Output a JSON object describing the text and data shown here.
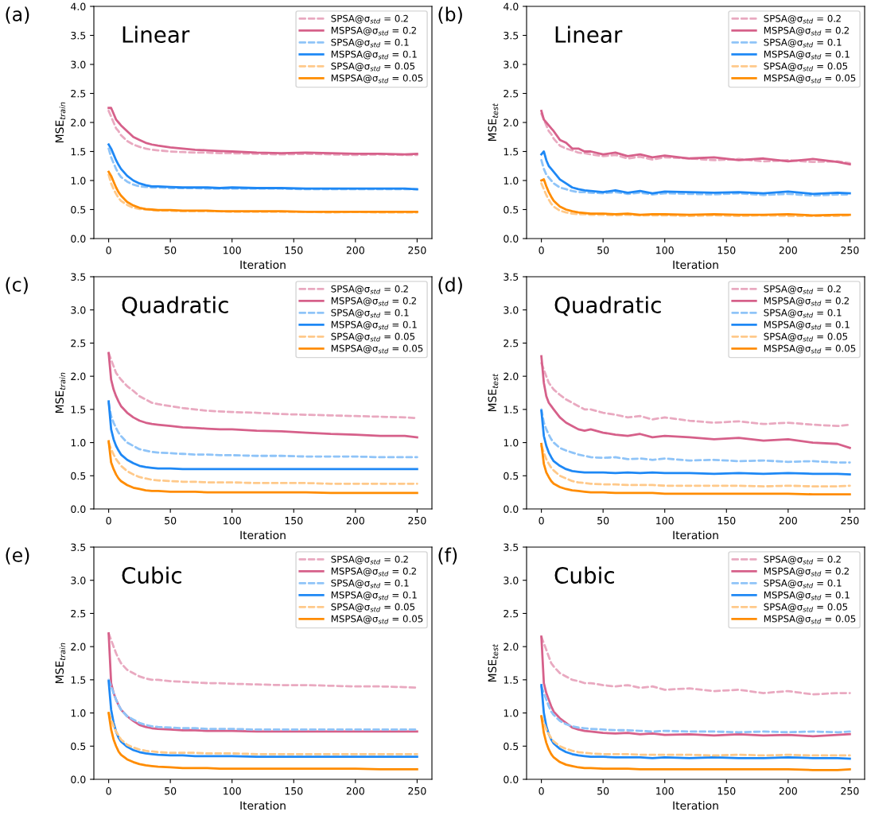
{
  "chart_data": [
    {
      "type": "line",
      "title": "(a)",
      "annotations": [
        "Linear"
      ],
      "xlabel": "Iteration",
      "ylabel": "MSE$_{train}$",
      "xlim": [
        -12,
        262
      ],
      "xticks": [
        0,
        50,
        100,
        150,
        200,
        250
      ],
      "ylim": [
        0,
        4
      ],
      "yticks": [
        {
          "value": 0,
          "label": "0.0"
        },
        0.5,
        {
          "value": 1,
          "label": "1.0"
        },
        1.5,
        {
          "value": 2,
          "label": "2.0"
        },
        2.5,
        {
          "value": 3,
          "label": "3.0"
        },
        3.5,
        {
          "value": 4,
          "label": "4.0"
        }
      ],
      "legend": "top right",
      "grid": false,
      "x": [
        0,
        2,
        4,
        6,
        8,
        10,
        15,
        20,
        25,
        30,
        35,
        40,
        50,
        60,
        70,
        80,
        90,
        100,
        120,
        140,
        160,
        180,
        200,
        220,
        240,
        250
      ],
      "series": [
        {
          "name": "SPSA@σ$_{std}$ = 0.2",
          "color": "#e9a9c0",
          "line_style": "dashed",
          "values": [
            2.2,
            2.1,
            2.0,
            1.9,
            1.85,
            1.78,
            1.68,
            1.62,
            1.58,
            1.55,
            1.53,
            1.52,
            1.5,
            1.49,
            1.48,
            1.48,
            1.47,
            1.47,
            1.46,
            1.45,
            1.46,
            1.45,
            1.44,
            1.45,
            1.44,
            1.44
          ]
        },
        {
          "name": "MSPSA@σ$_{std}$ = 0.2",
          "color": "#d6608a",
          "line_style": "solid",
          "values": [
            2.25,
            2.25,
            2.15,
            2.05,
            2.0,
            1.95,
            1.85,
            1.75,
            1.7,
            1.65,
            1.62,
            1.6,
            1.57,
            1.55,
            1.53,
            1.52,
            1.51,
            1.5,
            1.48,
            1.47,
            1.48,
            1.47,
            1.46,
            1.46,
            1.45,
            1.46
          ]
        },
        {
          "name": "SPSA@σ$_{std}$ = 0.1",
          "color": "#8fc4f8",
          "line_style": "dashed",
          "values": [
            1.55,
            1.4,
            1.3,
            1.2,
            1.12,
            1.06,
            0.98,
            0.93,
            0.9,
            0.89,
            0.88,
            0.88,
            0.87,
            0.87,
            0.87,
            0.86,
            0.86,
            0.86,
            0.86,
            0.86,
            0.85,
            0.85,
            0.85,
            0.85,
            0.85,
            0.85
          ]
        },
        {
          "name": "MSPSA@σ$_{std}$ = 0.1",
          "color": "#1e88f5",
          "line_style": "solid",
          "values": [
            1.62,
            1.55,
            1.45,
            1.35,
            1.27,
            1.2,
            1.08,
            1.0,
            0.95,
            0.92,
            0.9,
            0.9,
            0.89,
            0.88,
            0.88,
            0.88,
            0.87,
            0.88,
            0.87,
            0.87,
            0.86,
            0.86,
            0.86,
            0.86,
            0.86,
            0.85
          ]
        },
        {
          "name": "SPSA@σ$_{std}$ = 0.05",
          "color": "#ffc98a",
          "line_style": "dashed",
          "values": [
            1.1,
            0.95,
            0.85,
            0.77,
            0.7,
            0.65,
            0.58,
            0.53,
            0.51,
            0.5,
            0.49,
            0.48,
            0.48,
            0.47,
            0.47,
            0.47,
            0.47,
            0.46,
            0.46,
            0.46,
            0.46,
            0.45,
            0.46,
            0.45,
            0.45,
            0.45
          ]
        },
        {
          "name": "MSPSA@σ$_{std}$ = 0.05",
          "color": "#ff8c00",
          "line_style": "solid",
          "values": [
            1.15,
            1.08,
            0.98,
            0.88,
            0.8,
            0.74,
            0.63,
            0.57,
            0.53,
            0.51,
            0.5,
            0.49,
            0.49,
            0.48,
            0.48,
            0.48,
            0.47,
            0.47,
            0.47,
            0.47,
            0.46,
            0.46,
            0.46,
            0.46,
            0.46,
            0.46
          ]
        }
      ]
    },
    {
      "type": "line",
      "title": "(b)",
      "annotations": [
        "Linear"
      ],
      "xlabel": "Iteration",
      "ylabel": "MSE$_{test}$",
      "xlim": [
        -12,
        262
      ],
      "xticks": [
        0,
        50,
        100,
        150,
        200,
        250
      ],
      "ylim": [
        0,
        4
      ],
      "yticks": [
        {
          "value": 0,
          "label": "0.0"
        },
        0.5,
        {
          "value": 1,
          "label": "1.0"
        },
        1.5,
        {
          "value": 2,
          "label": "2.0"
        },
        2.5,
        {
          "value": 3,
          "label": "3.0"
        },
        3.5,
        {
          "value": 4,
          "label": "4.0"
        }
      ],
      "legend": "top right",
      "grid": false,
      "x": [
        0,
        2,
        4,
        6,
        8,
        10,
        15,
        20,
        25,
        30,
        35,
        40,
        50,
        60,
        70,
        80,
        90,
        100,
        120,
        140,
        160,
        180,
        200,
        220,
        240,
        250
      ],
      "series": [
        {
          "name": "SPSA@σ$_{std}$ = 0.2",
          "color": "#e9a9c0",
          "line_style": "dashed",
          "values": [
            2.15,
            2.05,
            1.95,
            1.85,
            1.8,
            1.72,
            1.6,
            1.55,
            1.52,
            1.48,
            1.47,
            1.45,
            1.42,
            1.44,
            1.38,
            1.41,
            1.36,
            1.4,
            1.38,
            1.35,
            1.37,
            1.33,
            1.35,
            1.32,
            1.33,
            1.3
          ]
        },
        {
          "name": "MSPSA@σ$_{std}$ = 0.2",
          "color": "#d6608a",
          "line_style": "solid",
          "values": [
            2.2,
            2.05,
            2.0,
            1.95,
            1.9,
            1.85,
            1.7,
            1.65,
            1.55,
            1.55,
            1.5,
            1.5,
            1.45,
            1.48,
            1.42,
            1.45,
            1.4,
            1.43,
            1.38,
            1.4,
            1.35,
            1.38,
            1.33,
            1.37,
            1.32,
            1.28
          ]
        },
        {
          "name": "SPSA@σ$_{std}$ = 0.1",
          "color": "#8fc4f8",
          "line_style": "dashed",
          "values": [
            1.35,
            1.2,
            1.1,
            1.05,
            1.0,
            0.95,
            0.88,
            0.85,
            0.82,
            0.8,
            0.8,
            0.79,
            0.78,
            0.8,
            0.77,
            0.79,
            0.76,
            0.78,
            0.77,
            0.76,
            0.78,
            0.75,
            0.77,
            0.74,
            0.76,
            0.76
          ]
        },
        {
          "name": "MSPSA@σ$_{std}$ = 0.1",
          "color": "#1e88f5",
          "line_style": "solid",
          "values": [
            1.45,
            1.5,
            1.35,
            1.25,
            1.2,
            1.15,
            1.02,
            0.95,
            0.88,
            0.85,
            0.83,
            0.82,
            0.8,
            0.83,
            0.79,
            0.82,
            0.78,
            0.81,
            0.8,
            0.79,
            0.8,
            0.78,
            0.81,
            0.77,
            0.79,
            0.78
          ]
        },
        {
          "name": "SPSA@σ$_{std}$ = 0.05",
          "color": "#ffc98a",
          "line_style": "dashed",
          "values": [
            0.95,
            0.85,
            0.75,
            0.67,
            0.6,
            0.55,
            0.48,
            0.45,
            0.43,
            0.42,
            0.42,
            0.41,
            0.41,
            0.4,
            0.41,
            0.4,
            0.4,
            0.4,
            0.39,
            0.4,
            0.39,
            0.4,
            0.39,
            0.39,
            0.39,
            0.4
          ]
        },
        {
          "name": "MSPSA@σ$_{std}$ = 0.05",
          "color": "#ff8c00",
          "line_style": "solid",
          "values": [
            1.0,
            1.02,
            0.9,
            0.8,
            0.72,
            0.65,
            0.55,
            0.5,
            0.47,
            0.45,
            0.44,
            0.43,
            0.43,
            0.42,
            0.43,
            0.41,
            0.42,
            0.42,
            0.41,
            0.42,
            0.41,
            0.41,
            0.42,
            0.4,
            0.41,
            0.41
          ]
        }
      ]
    },
    {
      "type": "line",
      "title": "(c)",
      "annotations": [
        "Quadratic"
      ],
      "xlabel": "Iteration",
      "ylabel": "MSE$_{train}$",
      "xlim": [
        -12,
        262
      ],
      "xticks": [
        0,
        50,
        100,
        150,
        200,
        250
      ],
      "ylim": [
        0,
        3.5
      ],
      "yticks": [
        {
          "value": 0,
          "label": "0.0"
        },
        0.5,
        {
          "value": 1,
          "label": "1.0"
        },
        1.5,
        {
          "value": 2,
          "label": "2.0"
        },
        2.5,
        {
          "value": 3,
          "label": "3.0"
        },
        3.5
      ],
      "legend": "top right",
      "grid": false,
      "x": [
        0,
        2,
        4,
        6,
        8,
        10,
        15,
        20,
        25,
        30,
        35,
        40,
        50,
        60,
        70,
        80,
        90,
        100,
        120,
        140,
        160,
        180,
        200,
        220,
        240,
        250
      ],
      "series": [
        {
          "name": "SPSA@σ$_{std}$ = 0.2",
          "color": "#e9a9c0",
          "line_style": "dashed",
          "values": [
            2.35,
            2.25,
            2.15,
            2.05,
            2.0,
            1.95,
            1.85,
            1.78,
            1.7,
            1.65,
            1.6,
            1.58,
            1.55,
            1.52,
            1.5,
            1.48,
            1.47,
            1.46,
            1.45,
            1.43,
            1.42,
            1.41,
            1.4,
            1.39,
            1.38,
            1.37
          ]
        },
        {
          "name": "MSPSA@σ$_{std}$ = 0.2",
          "color": "#d6608a",
          "line_style": "solid",
          "values": [
            2.35,
            1.95,
            1.8,
            1.7,
            1.62,
            1.55,
            1.45,
            1.38,
            1.33,
            1.3,
            1.28,
            1.27,
            1.25,
            1.23,
            1.22,
            1.21,
            1.2,
            1.2,
            1.18,
            1.17,
            1.15,
            1.13,
            1.12,
            1.1,
            1.1,
            1.08
          ]
        },
        {
          "name": "SPSA@σ$_{std}$ = 0.1",
          "color": "#8fc4f8",
          "line_style": "dashed",
          "values": [
            1.6,
            1.4,
            1.3,
            1.22,
            1.15,
            1.1,
            1.0,
            0.95,
            0.9,
            0.88,
            0.86,
            0.85,
            0.84,
            0.83,
            0.82,
            0.82,
            0.81,
            0.81,
            0.8,
            0.8,
            0.79,
            0.79,
            0.79,
            0.78,
            0.78,
            0.78
          ]
        },
        {
          "name": "MSPSA@σ$_{std}$ = 0.1",
          "color": "#1e88f5",
          "line_style": "solid",
          "values": [
            1.62,
            1.2,
            1.05,
            0.95,
            0.88,
            0.82,
            0.74,
            0.69,
            0.65,
            0.63,
            0.62,
            0.61,
            0.61,
            0.6,
            0.6,
            0.6,
            0.6,
            0.6,
            0.6,
            0.6,
            0.6,
            0.6,
            0.6,
            0.6,
            0.6,
            0.6
          ]
        },
        {
          "name": "SPSA@σ$_{std}$ = 0.05",
          "color": "#ffc98a",
          "line_style": "dashed",
          "values": [
            1.0,
            0.9,
            0.82,
            0.75,
            0.7,
            0.65,
            0.57,
            0.52,
            0.48,
            0.46,
            0.44,
            0.43,
            0.42,
            0.41,
            0.41,
            0.4,
            0.4,
            0.4,
            0.39,
            0.39,
            0.39,
            0.38,
            0.38,
            0.38,
            0.38,
            0.38
          ]
        },
        {
          "name": "MSPSA@σ$_{std}$ = 0.05",
          "color": "#ff8c00",
          "line_style": "solid",
          "values": [
            1.02,
            0.7,
            0.6,
            0.52,
            0.46,
            0.42,
            0.36,
            0.32,
            0.3,
            0.28,
            0.27,
            0.27,
            0.26,
            0.26,
            0.26,
            0.25,
            0.25,
            0.25,
            0.25,
            0.25,
            0.25,
            0.24,
            0.24,
            0.24,
            0.24,
            0.24
          ]
        }
      ]
    },
    {
      "type": "line",
      "title": "(d)",
      "annotations": [
        "Quadratic"
      ],
      "xlabel": "Iteration",
      "ylabel": "MSE$_{test}$",
      "xlim": [
        -12,
        262
      ],
      "xticks": [
        0,
        50,
        100,
        150,
        200,
        250
      ],
      "ylim": [
        0,
        3.5
      ],
      "yticks": [
        {
          "value": 0,
          "label": "0.0"
        },
        0.5,
        {
          "value": 1,
          "label": "1.0"
        },
        1.5,
        {
          "value": 2,
          "label": "2.0"
        },
        2.5,
        {
          "value": 3,
          "label": "3.0"
        },
        3.5
      ],
      "legend": "top right",
      "grid": false,
      "x": [
        0,
        2,
        4,
        6,
        8,
        10,
        15,
        20,
        25,
        30,
        35,
        40,
        50,
        60,
        70,
        80,
        90,
        100,
        120,
        140,
        160,
        180,
        200,
        220,
        240,
        250
      ],
      "series": [
        {
          "name": "SPSA@σ$_{std}$ = 0.2",
          "color": "#e9a9c0",
          "line_style": "dashed",
          "values": [
            2.2,
            2.1,
            2.0,
            1.9,
            1.85,
            1.8,
            1.72,
            1.65,
            1.6,
            1.55,
            1.5,
            1.5,
            1.45,
            1.42,
            1.38,
            1.4,
            1.35,
            1.38,
            1.33,
            1.3,
            1.32,
            1.28,
            1.3,
            1.27,
            1.25,
            1.27
          ]
        },
        {
          "name": "MSPSA@σ$_{std}$ = 0.2",
          "color": "#d6608a",
          "line_style": "solid",
          "values": [
            2.3,
            1.9,
            1.7,
            1.6,
            1.55,
            1.5,
            1.38,
            1.3,
            1.25,
            1.2,
            1.18,
            1.2,
            1.15,
            1.12,
            1.1,
            1.13,
            1.08,
            1.1,
            1.08,
            1.05,
            1.07,
            1.03,
            1.05,
            1.0,
            0.98,
            0.92
          ]
        },
        {
          "name": "SPSA@σ$_{std}$ = 0.1",
          "color": "#8fc4f8",
          "line_style": "dashed",
          "values": [
            1.5,
            1.3,
            1.2,
            1.12,
            1.05,
            1.0,
            0.92,
            0.88,
            0.85,
            0.82,
            0.8,
            0.78,
            0.77,
            0.78,
            0.75,
            0.76,
            0.74,
            0.76,
            0.73,
            0.74,
            0.72,
            0.73,
            0.71,
            0.72,
            0.7,
            0.7
          ]
        },
        {
          "name": "MSPSA@σ$_{std}$ = 0.1",
          "color": "#1e88f5",
          "line_style": "solid",
          "values": [
            1.48,
            1.1,
            0.95,
            0.85,
            0.78,
            0.72,
            0.65,
            0.6,
            0.57,
            0.56,
            0.55,
            0.55,
            0.55,
            0.54,
            0.55,
            0.54,
            0.55,
            0.54,
            0.54,
            0.53,
            0.54,
            0.53,
            0.54,
            0.53,
            0.53,
            0.52
          ]
        },
        {
          "name": "SPSA@σ$_{std}$ = 0.05",
          "color": "#ffc98a",
          "line_style": "dashed",
          "values": [
            0.95,
            0.85,
            0.75,
            0.68,
            0.62,
            0.58,
            0.5,
            0.46,
            0.42,
            0.4,
            0.39,
            0.38,
            0.37,
            0.37,
            0.36,
            0.36,
            0.36,
            0.35,
            0.35,
            0.35,
            0.35,
            0.34,
            0.35,
            0.34,
            0.34,
            0.35
          ]
        },
        {
          "name": "MSPSA@σ$_{std}$ = 0.05",
          "color": "#ff8c00",
          "line_style": "solid",
          "values": [
            0.98,
            0.68,
            0.55,
            0.48,
            0.42,
            0.38,
            0.33,
            0.3,
            0.28,
            0.27,
            0.26,
            0.25,
            0.25,
            0.24,
            0.24,
            0.24,
            0.24,
            0.23,
            0.23,
            0.23,
            0.23,
            0.23,
            0.23,
            0.22,
            0.22,
            0.22
          ]
        }
      ]
    },
    {
      "type": "line",
      "title": "(e)",
      "annotations": [
        "Cubic"
      ],
      "xlabel": "Iteration",
      "ylabel": "MSE$_{train}$",
      "xlim": [
        -12,
        262
      ],
      "xticks": [
        0,
        50,
        100,
        150,
        200,
        250
      ],
      "ylim": [
        0,
        3.5
      ],
      "yticks": [
        {
          "value": 0,
          "label": "0.0"
        },
        0.5,
        {
          "value": 1,
          "label": "1.0"
        },
        1.5,
        {
          "value": 2,
          "label": "2.0"
        },
        2.5,
        {
          "value": 3,
          "label": "3.0"
        },
        3.5
      ],
      "legend": "top right",
      "grid": false,
      "x": [
        0,
        2,
        4,
        6,
        8,
        10,
        15,
        20,
        25,
        30,
        35,
        40,
        50,
        60,
        70,
        80,
        90,
        100,
        120,
        140,
        160,
        180,
        200,
        220,
        240,
        250
      ],
      "series": [
        {
          "name": "SPSA@σ$_{std}$ = 0.2",
          "color": "#e9a9c0",
          "line_style": "dashed",
          "values": [
            2.2,
            2.1,
            2.0,
            1.9,
            1.82,
            1.75,
            1.65,
            1.6,
            1.55,
            1.52,
            1.5,
            1.5,
            1.48,
            1.47,
            1.46,
            1.45,
            1.45,
            1.44,
            1.43,
            1.42,
            1.42,
            1.41,
            1.4,
            1.4,
            1.39,
            1.38
          ]
        },
        {
          "name": "MSPSA@σ$_{std}$ = 0.2",
          "color": "#d6608a",
          "line_style": "solid",
          "values": [
            2.2,
            1.45,
            1.3,
            1.2,
            1.12,
            1.05,
            0.95,
            0.88,
            0.82,
            0.79,
            0.77,
            0.76,
            0.75,
            0.74,
            0.74,
            0.73,
            0.73,
            0.73,
            0.72,
            0.72,
            0.72,
            0.72,
            0.72,
            0.72,
            0.72,
            0.72
          ]
        },
        {
          "name": "SPSA@σ$_{std}$ = 0.1",
          "color": "#8fc4f8",
          "line_style": "dashed",
          "values": [
            1.5,
            1.4,
            1.3,
            1.2,
            1.12,
            1.05,
            0.95,
            0.9,
            0.85,
            0.82,
            0.8,
            0.79,
            0.78,
            0.77,
            0.77,
            0.76,
            0.76,
            0.76,
            0.75,
            0.75,
            0.75,
            0.75,
            0.75,
            0.75,
            0.75,
            0.75
          ]
        },
        {
          "name": "MSPSA@σ$_{std}$ = 0.1",
          "color": "#1e88f5",
          "line_style": "solid",
          "values": [
            1.48,
            1.05,
            0.85,
            0.72,
            0.63,
            0.57,
            0.49,
            0.44,
            0.41,
            0.39,
            0.38,
            0.37,
            0.36,
            0.36,
            0.35,
            0.35,
            0.35,
            0.35,
            0.34,
            0.34,
            0.34,
            0.34,
            0.34,
            0.34,
            0.34,
            0.34
          ]
        },
        {
          "name": "SPSA@σ$_{std}$ = 0.05",
          "color": "#ffc98a",
          "line_style": "dashed",
          "values": [
            1.0,
            0.9,
            0.8,
            0.72,
            0.66,
            0.6,
            0.52,
            0.48,
            0.45,
            0.43,
            0.42,
            0.41,
            0.4,
            0.4,
            0.4,
            0.39,
            0.39,
            0.39,
            0.38,
            0.38,
            0.38,
            0.38,
            0.38,
            0.38,
            0.38,
            0.38
          ]
        },
        {
          "name": "MSPSA@σ$_{std}$ = 0.05",
          "color": "#ff8c00",
          "line_style": "solid",
          "values": [
            1.0,
            0.75,
            0.6,
            0.5,
            0.42,
            0.37,
            0.3,
            0.26,
            0.23,
            0.21,
            0.2,
            0.19,
            0.18,
            0.17,
            0.17,
            0.17,
            0.16,
            0.16,
            0.16,
            0.16,
            0.16,
            0.16,
            0.16,
            0.15,
            0.15,
            0.15
          ]
        }
      ]
    },
    {
      "type": "line",
      "title": "(f)",
      "annotations": [
        "Cubic"
      ],
      "xlabel": "Iteration",
      "ylabel": "MSE$_{test}$",
      "xlim": [
        -12,
        262
      ],
      "xticks": [
        0,
        50,
        100,
        150,
        200,
        250
      ],
      "ylim": [
        0,
        3.5
      ],
      "yticks": [
        {
          "value": 0,
          "label": "0.0"
        },
        0.5,
        {
          "value": 1,
          "label": "1.0"
        },
        1.5,
        {
          "value": 2,
          "label": "2.0"
        },
        2.5,
        {
          "value": 3,
          "label": "3.0"
        },
        3.5
      ],
      "legend": "top right",
      "grid": false,
      "x": [
        0,
        2,
        4,
        6,
        8,
        10,
        15,
        20,
        25,
        30,
        35,
        40,
        50,
        60,
        70,
        80,
        90,
        100,
        120,
        140,
        160,
        180,
        200,
        220,
        240,
        250
      ],
      "series": [
        {
          "name": "SPSA@σ$_{std}$ = 0.2",
          "color": "#e9a9c0",
          "line_style": "dashed",
          "values": [
            2.15,
            2.05,
            1.95,
            1.85,
            1.75,
            1.7,
            1.6,
            1.55,
            1.5,
            1.48,
            1.45,
            1.45,
            1.42,
            1.4,
            1.42,
            1.38,
            1.4,
            1.35,
            1.37,
            1.33,
            1.35,
            1.3,
            1.33,
            1.28,
            1.3,
            1.3
          ]
        },
        {
          "name": "MSPSA@σ$_{std}$ = 0.2",
          "color": "#d6608a",
          "line_style": "solid",
          "values": [
            2.15,
            1.45,
            1.3,
            1.2,
            1.1,
            1.02,
            0.92,
            0.85,
            0.78,
            0.75,
            0.73,
            0.72,
            0.7,
            0.69,
            0.7,
            0.68,
            0.69,
            0.67,
            0.68,
            0.66,
            0.68,
            0.66,
            0.67,
            0.65,
            0.67,
            0.68
          ]
        },
        {
          "name": "SPSA@σ$_{std}$ = 0.1",
          "color": "#8fc4f8",
          "line_style": "dashed",
          "values": [
            1.4,
            1.3,
            1.2,
            1.1,
            1.02,
            0.97,
            0.88,
            0.83,
            0.8,
            0.78,
            0.77,
            0.76,
            0.75,
            0.74,
            0.74,
            0.73,
            0.72,
            0.73,
            0.72,
            0.72,
            0.71,
            0.72,
            0.71,
            0.72,
            0.71,
            0.72
          ]
        },
        {
          "name": "MSPSA@σ$_{std}$ = 0.1",
          "color": "#1e88f5",
          "line_style": "solid",
          "values": [
            1.42,
            1.0,
            0.8,
            0.68,
            0.6,
            0.54,
            0.46,
            0.41,
            0.38,
            0.36,
            0.35,
            0.34,
            0.34,
            0.33,
            0.33,
            0.33,
            0.32,
            0.33,
            0.32,
            0.33,
            0.32,
            0.32,
            0.33,
            0.32,
            0.32,
            0.31
          ]
        },
        {
          "name": "SPSA@σ$_{std}$ = 0.05",
          "color": "#ffc98a",
          "line_style": "dashed",
          "values": [
            0.95,
            0.85,
            0.75,
            0.68,
            0.62,
            0.57,
            0.5,
            0.46,
            0.43,
            0.41,
            0.4,
            0.39,
            0.38,
            0.38,
            0.38,
            0.37,
            0.37,
            0.37,
            0.37,
            0.36,
            0.37,
            0.36,
            0.37,
            0.36,
            0.36,
            0.36
          ]
        },
        {
          "name": "MSPSA@σ$_{std}$ = 0.05",
          "color": "#ff8c00",
          "line_style": "solid",
          "values": [
            0.95,
            0.7,
            0.55,
            0.45,
            0.38,
            0.33,
            0.26,
            0.22,
            0.2,
            0.18,
            0.17,
            0.17,
            0.16,
            0.16,
            0.16,
            0.15,
            0.15,
            0.15,
            0.15,
            0.15,
            0.15,
            0.15,
            0.15,
            0.14,
            0.14,
            0.15
          ]
        }
      ]
    }
  ]
}
